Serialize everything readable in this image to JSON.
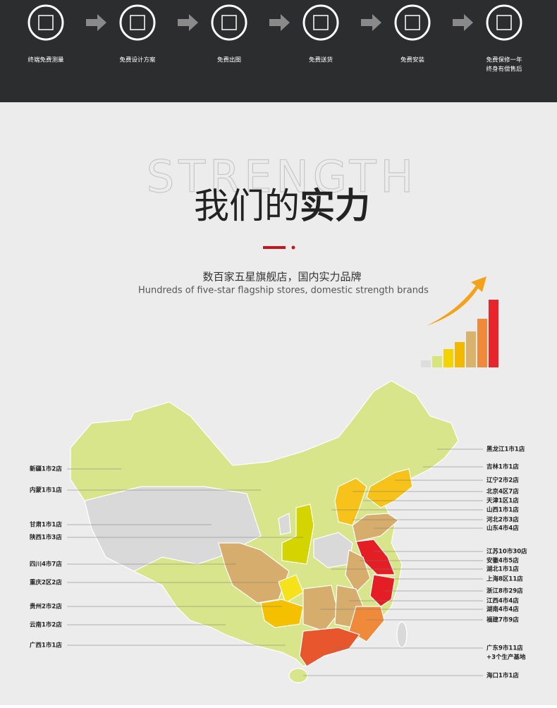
{
  "steps": [
    [
      "终端免费测量"
    ],
    [
      "免费设计方案"
    ],
    [
      "免费出图"
    ],
    [
      "免费送货"
    ],
    [
      "免费安装"
    ],
    [
      "免费保修一年",
      "终身有偿售后"
    ]
  ],
  "section": {
    "watermark": "STRENGTH",
    "title_light": "我们的",
    "title_bold": "实力",
    "subtitle": "数百家五星旗舰店，国内实力品牌",
    "subtitle_en": "Hundreds of five-star flagship stores, domestic strength brands"
  },
  "map": {
    "left_labels": [
      "新疆1市2店",
      "内蒙1市1店",
      "甘肃1市1店",
      "陕西1市3店",
      "四川4市7店",
      "重庆2区2店",
      "贵州2市2店",
      "云南1市2店",
      "广西1市1店"
    ],
    "right_labels": [
      "黑龙江1市1店",
      "吉林1市1店",
      "辽宁2市2店",
      "北京4区7店",
      "天津1区1店",
      "山西1市1店",
      "河北2市3店",
      "山东4市4店",
      "江苏10市30店",
      "安徽4市5店",
      "湖北1市1店",
      "上海8区11店",
      "浙江8市29店",
      "江西4市4店",
      "湖南4市4店",
      "福建7市9店",
      "广东9市11店",
      "+3个生产基地",
      "海口1市1店"
    ]
  }
}
